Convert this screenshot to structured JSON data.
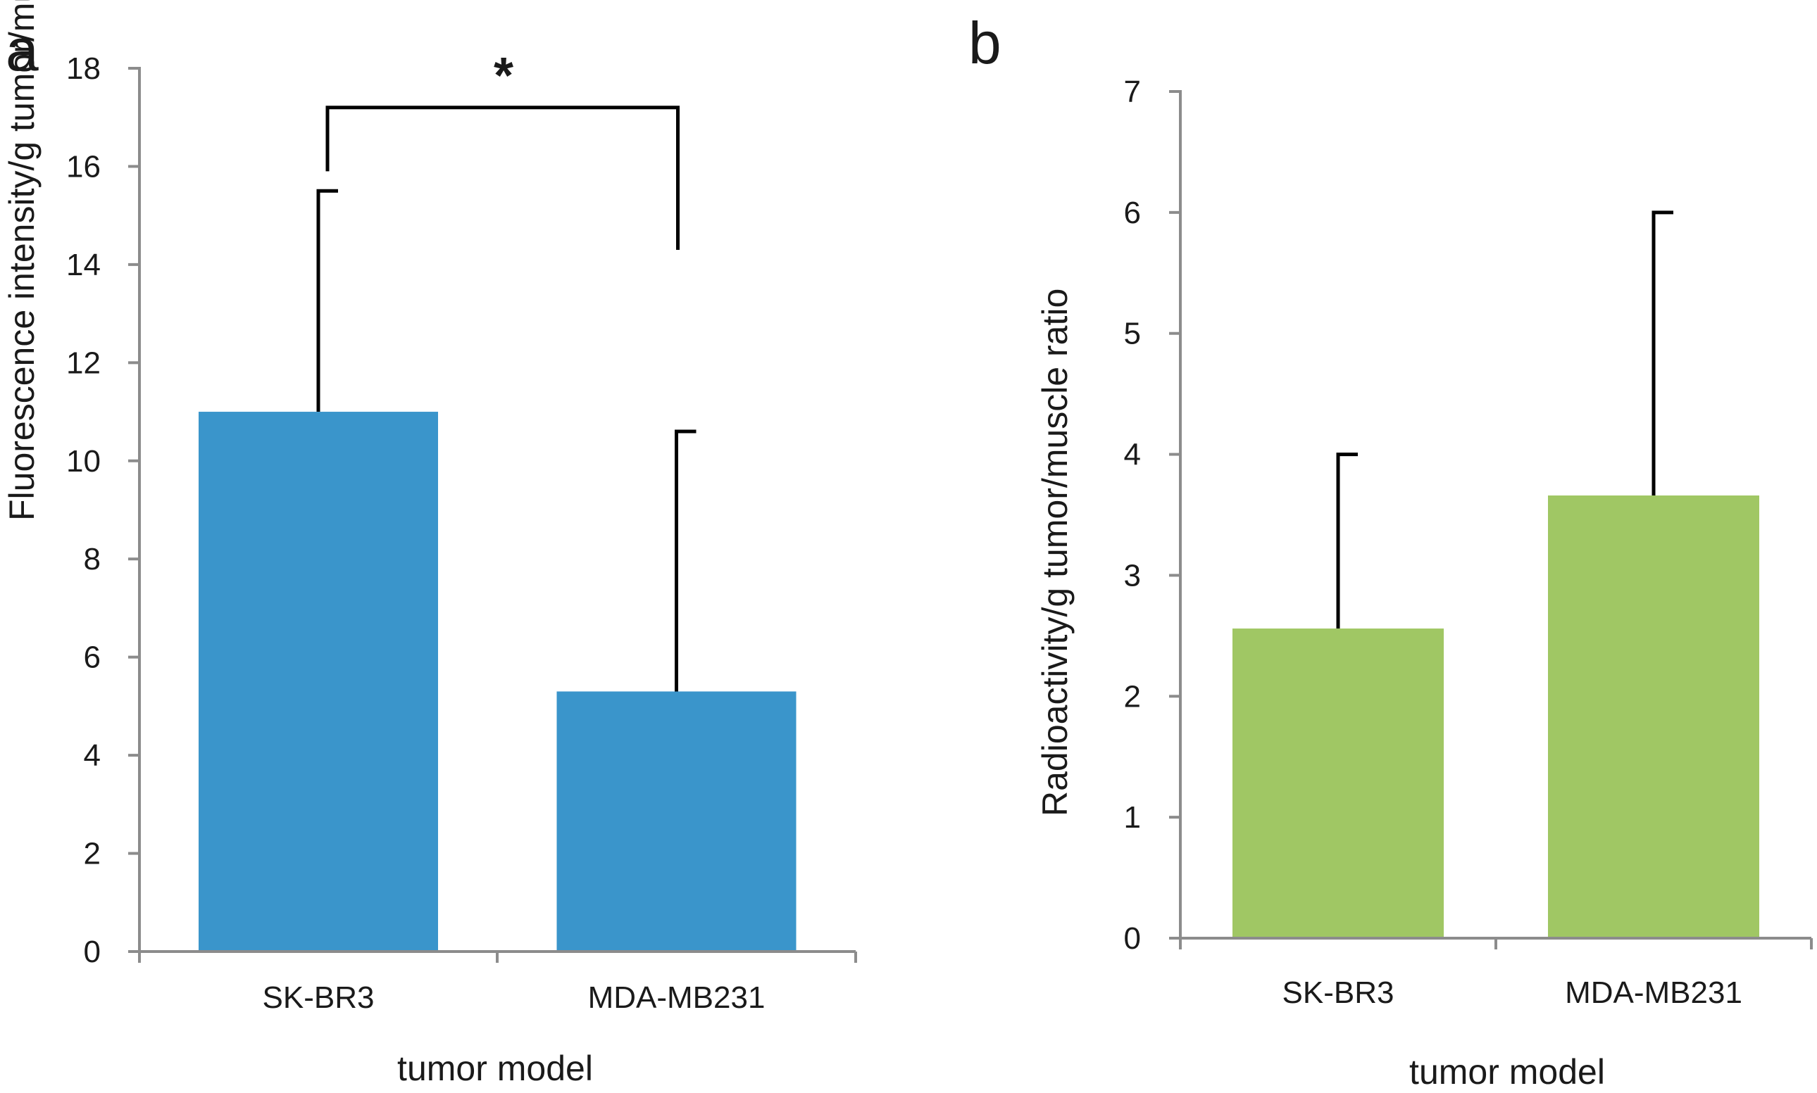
{
  "chart_data": [
    {
      "type": "bar",
      "panel_label": "a",
      "categories": [
        "SK-BR3",
        "MDA-MB231"
      ],
      "values": [
        11.0,
        5.3
      ],
      "error_plus": [
        4.5,
        5.3
      ],
      "xlabel": "tumor model",
      "ylabel": "Fluorescence intensity/g tumor/muscle ratio",
      "ylim": [
        0,
        18
      ],
      "yticks": [
        0,
        2,
        4,
        6,
        8,
        10,
        12,
        14,
        16,
        18
      ],
      "grid": false,
      "bar_color": "#3a95cb",
      "significance": {
        "label": "*",
        "between": [
          "SK-BR3",
          "MDA-MB231"
        ],
        "left_level": 15.9,
        "top_level": 17.2,
        "right_level": 14.3
      }
    },
    {
      "type": "bar",
      "panel_label": "b",
      "categories": [
        "SK-BR3",
        "MDA-MB231"
      ],
      "values": [
        2.56,
        3.66
      ],
      "error_plus": [
        1.44,
        2.34
      ],
      "xlabel": "tumor model",
      "ylabel": "Radioactivity/g  tumor/muscle ratio",
      "ylim": [
        0,
        7
      ],
      "yticks": [
        0,
        1,
        2,
        3,
        4,
        5,
        6,
        7
      ],
      "grid": false,
      "bar_color": "#a0c764"
    }
  ]
}
